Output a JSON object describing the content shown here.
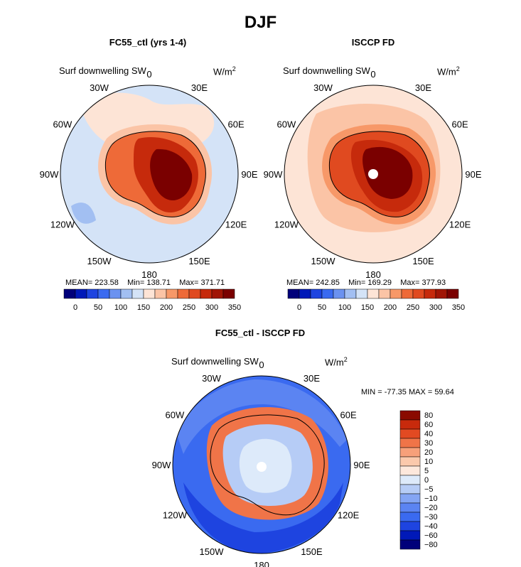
{
  "figure": {
    "title": "DJF"
  },
  "palette": {
    "abs_colors": [
      "#00007a",
      "#0019b8",
      "#1e44e0",
      "#3a6af0",
      "#6b92f0",
      "#a2bff2",
      "#d4e3f7",
      "#fde4d6",
      "#fbc4a6",
      "#f79868",
      "#ee6a38",
      "#e04a20",
      "#c62a0c",
      "#a01505",
      "#7a0000"
    ],
    "diff_colors": [
      "#00007a",
      "#0019b8",
      "#1e44e0",
      "#3a6af0",
      "#5b84f2",
      "#84a5f4",
      "#b6ccf6",
      "#ddeafa",
      "#fde8dc",
      "#fbc9ac",
      "#f7a07a",
      "#f07448",
      "#e24a22",
      "#c82a0c",
      "#8a0a00"
    ],
    "ocean_fc55": "#c8d8f2",
    "ocean_isccp": "#fde4d6"
  },
  "chart_data": [
    {
      "type": "polar-contour-map",
      "name": "fc55",
      "title": "FC55_ctl (yrs 1-4)",
      "variable": "Surf downwelling SW",
      "units": "W/m",
      "units_exp": "2",
      "lon_labels": [
        "0",
        "30E",
        "60E",
        "90E",
        "120E",
        "150E",
        "180",
        "150W",
        "120W",
        "90W",
        "60W",
        "30W"
      ],
      "stats": {
        "mean": "MEAN= 223.58",
        "min": "Min= 138.71",
        "max": "Max= 371.71"
      },
      "colorbar_ticks": [
        "0",
        "50",
        "100",
        "150",
        "200",
        "250",
        "300",
        "350"
      ],
      "levels": [
        0,
        25,
        50,
        75,
        100,
        125,
        150,
        175,
        200,
        225,
        250,
        275,
        300,
        325,
        350
      ]
    },
    {
      "type": "polar-contour-map",
      "name": "isccp",
      "title": "ISCCP FD",
      "variable": "Surf downwelling SW",
      "units": "W/m",
      "units_exp": "2",
      "lon_labels": [
        "0",
        "30E",
        "60E",
        "90E",
        "120E",
        "150E",
        "180",
        "150W",
        "120W",
        "90W",
        "60W",
        "30W"
      ],
      "stats": {
        "mean": "MEAN= 242.85",
        "min": "Min= 169.29",
        "max": "Max= 377.93"
      },
      "colorbar_ticks": [
        "0",
        "50",
        "100",
        "150",
        "200",
        "250",
        "300",
        "350"
      ],
      "levels": [
        0,
        25,
        50,
        75,
        100,
        125,
        150,
        175,
        200,
        225,
        250,
        275,
        300,
        325,
        350
      ]
    },
    {
      "type": "polar-contour-map",
      "name": "diff",
      "title": "FC55_ctl - ISCCP FD",
      "variable": "Surf downwelling SW",
      "units": "W/m",
      "units_exp": "2",
      "lon_labels": [
        "0",
        "30E",
        "60E",
        "90E",
        "120E",
        "150E",
        "180",
        "150W",
        "120W",
        "90W",
        "60W",
        "30W"
      ],
      "stats": {
        "range": "MIN = -77.35 MAX =  59.64"
      },
      "colorbar_ticks": [
        "80",
        "60",
        "40",
        "30",
        "20",
        "10",
        "5",
        "0",
        "−5",
        "−10",
        "−20",
        "−30",
        "−40",
        "−60",
        "−80"
      ]
    }
  ]
}
